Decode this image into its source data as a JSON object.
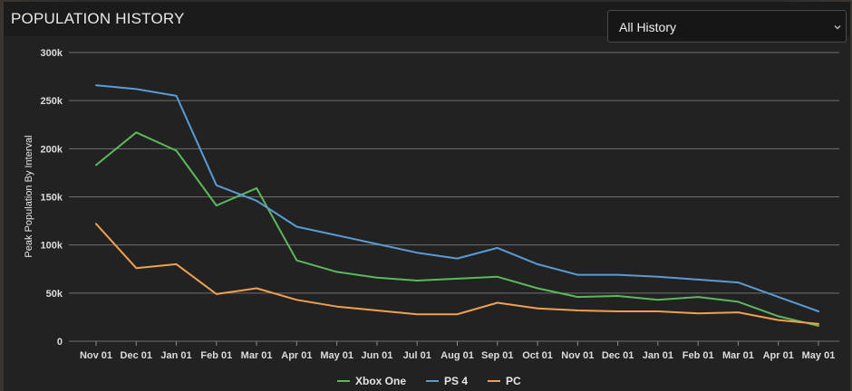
{
  "header": {
    "title": "POPULATION HISTORY"
  },
  "range_select": {
    "value": "All History"
  },
  "colors": {
    "background": "#222222",
    "grid": "#8a8a8a",
    "xbox_one": "#5cb85c",
    "ps4": "#5b9bd5",
    "pc": "#f0a050"
  },
  "chart_data": {
    "type": "line",
    "title": "",
    "xlabel": "",
    "ylabel": "Peak Population By Interval",
    "ylim": [
      0,
      300000
    ],
    "y_ticks": [
      0,
      50000,
      100000,
      150000,
      200000,
      250000,
      300000
    ],
    "y_tick_labels": [
      "0",
      "50k",
      "100k",
      "150k",
      "200k",
      "250k",
      "300k"
    ],
    "categories": [
      "Nov 01",
      "Dec 01",
      "Jan 01",
      "Feb 01",
      "Mar 01",
      "Apr 01",
      "May 01",
      "Jun 01",
      "Jul 01",
      "Aug 01",
      "Sep 01",
      "Oct 01",
      "Nov 01",
      "Dec 01",
      "Jan 01",
      "Feb 01",
      "Mar 01",
      "Apr 01",
      "May 01"
    ],
    "grid": true,
    "legend_position": "bottom-center",
    "series": [
      {
        "name": "Xbox One",
        "color": "#5cb85c",
        "values": [
          183000,
          217000,
          198000,
          141000,
          159000,
          84000,
          72000,
          66000,
          63000,
          65000,
          67000,
          55000,
          46000,
          47000,
          43000,
          46000,
          41000,
          26000,
          16000
        ]
      },
      {
        "name": "PS 4",
        "color": "#5b9bd5",
        "values": [
          266000,
          262000,
          255000,
          162000,
          146000,
          119000,
          110000,
          101000,
          92000,
          86000,
          97000,
          80000,
          69000,
          69000,
          67000,
          64000,
          61000,
          46000,
          31000
        ]
      },
      {
        "name": "PC",
        "color": "#f0a050",
        "values": [
          122000,
          76000,
          80000,
          49000,
          55000,
          43000,
          36000,
          32000,
          28000,
          28000,
          40000,
          34000,
          32000,
          31000,
          31000,
          29000,
          30000,
          22000,
          18000
        ]
      }
    ]
  }
}
